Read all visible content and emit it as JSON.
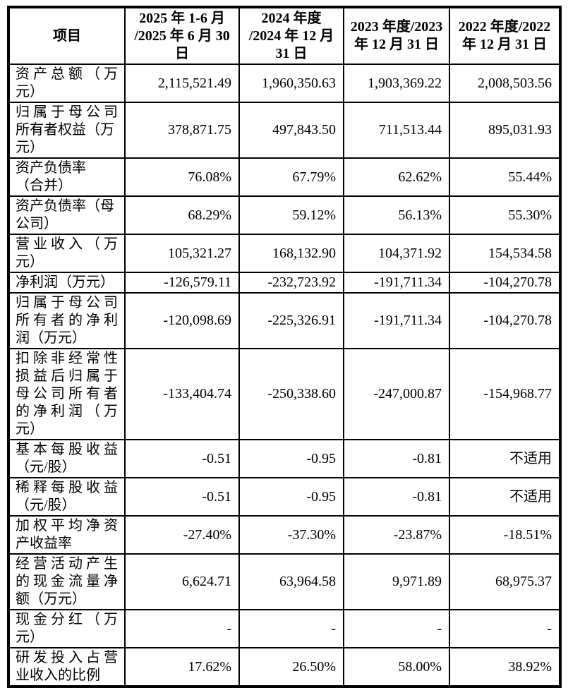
{
  "colors": {
    "background": "#ffffff",
    "text": "#000000",
    "border": "#000000"
  },
  "table": {
    "header": {
      "item_label": "项目",
      "periods": [
        "2025 年 1-6 月\n/2025 年 6 月 30\n日",
        "2024 年度\n/2024 年 12 月\n31 日",
        "2023 年度/2023\n年 12 月 31 日",
        "2022 年度/2022\n年 12 月 31 日"
      ]
    },
    "rows": [
      {
        "label": "资产总额（万元）",
        "label_lines": [
          {
            "text": "资产总额（万",
            "stretch": true
          },
          {
            "text": "元）",
            "stretch": false
          }
        ],
        "values": [
          "2,115,521.49",
          "1,960,350.63",
          "1,903,369.22",
          "2,008,503.56"
        ]
      },
      {
        "label": "归属于母公司所有者权益（万元）",
        "label_lines": [
          {
            "text": "归属于母公司",
            "stretch": true
          },
          {
            "text": "所有者权益（万",
            "stretch": false
          },
          {
            "text": "元）",
            "stretch": false
          }
        ],
        "values": [
          "378,871.75",
          "497,843.50",
          "711,513.44",
          "895,031.93"
        ]
      },
      {
        "label": "资产负债率（合并）",
        "label_lines": [
          {
            "text": "资产负债率",
            "stretch": false
          },
          {
            "text": "（合并）",
            "stretch": false
          }
        ],
        "values": [
          "76.08%",
          "67.79%",
          "62.62%",
          "55.44%"
        ]
      },
      {
        "label": "资产负债率（母公司）",
        "label_lines": [
          {
            "text": "资产负债率（母",
            "stretch": false
          },
          {
            "text": "公司）",
            "stretch": false
          }
        ],
        "values": [
          "68.29%",
          "59.12%",
          "56.13%",
          "55.30%"
        ]
      },
      {
        "label": "营业收入（万元）",
        "label_lines": [
          {
            "text": "营业收入（万",
            "stretch": true
          },
          {
            "text": "元）",
            "stretch": false
          }
        ],
        "values": [
          "105,321.27",
          "168,132.90",
          "104,371.92",
          "154,534.58"
        ]
      },
      {
        "label": "净利润（万元）",
        "label_lines": [
          {
            "text": "净利润（万元）",
            "stretch": false
          }
        ],
        "values": [
          "-126,579.11",
          "-232,723.92",
          "-191,711.34",
          "-104,270.78"
        ]
      },
      {
        "label": "归属于母公司所有者的净利润（万元）",
        "label_lines": [
          {
            "text": "归属于母公司",
            "stretch": true
          },
          {
            "text": "所有者的净利",
            "stretch": true
          },
          {
            "text": "润（万元）",
            "stretch": false
          }
        ],
        "values": [
          "-120,098.69",
          "-225,326.91",
          "-191,711.34",
          "-104,270.78"
        ]
      },
      {
        "label": "扣除非经常性损益后归属于母公司所有者的净利润（万元）",
        "label_lines": [
          {
            "text": "扣除非经常性",
            "stretch": true
          },
          {
            "text": "损益后归属于",
            "stretch": true
          },
          {
            "text": "母公司所有者",
            "stretch": true
          },
          {
            "text": "的净利润（万",
            "stretch": true
          },
          {
            "text": "元）",
            "stretch": false
          }
        ],
        "values": [
          "-133,404.74",
          "-250,338.60",
          "-247,000.87",
          "-154,968.77"
        ]
      },
      {
        "label": "基本每股收益（元/股）",
        "label_lines": [
          {
            "text": "基本每股收益",
            "stretch": true
          },
          {
            "text": "（元/股）",
            "stretch": false
          }
        ],
        "values": [
          "-0.51",
          "-0.95",
          "-0.81",
          "不适用"
        ]
      },
      {
        "label": "稀释每股收益（元/股）",
        "label_lines": [
          {
            "text": "稀释每股收益",
            "stretch": true
          },
          {
            "text": "（元/股）",
            "stretch": false
          }
        ],
        "values": [
          "-0.51",
          "-0.95",
          "-0.81",
          "不适用"
        ]
      },
      {
        "label": "加权平均净资产收益率",
        "label_lines": [
          {
            "text": "加权平均净资",
            "stretch": true
          },
          {
            "text": "产收益率",
            "stretch": false
          }
        ],
        "values": [
          "-27.40%",
          "-37.30%",
          "-23.87%",
          "-18.51%"
        ]
      },
      {
        "label": "经营活动产生的现金流量净额（万元）",
        "label_lines": [
          {
            "text": "经营活动产生",
            "stretch": true
          },
          {
            "text": "的现金流量净",
            "stretch": true
          },
          {
            "text": "额（万元）",
            "stretch": false
          }
        ],
        "values": [
          "6,624.71",
          "63,964.58",
          "9,971.89",
          "68,975.37"
        ]
      },
      {
        "label": "现金分红（万元）",
        "label_lines": [
          {
            "text": "现金分红（万",
            "stretch": true
          },
          {
            "text": "元）",
            "stretch": false
          }
        ],
        "values": [
          "-",
          "-",
          "-",
          "-"
        ]
      },
      {
        "label": "研发投入占营业收入的比例",
        "label_lines": [
          {
            "text": "研发投入占营",
            "stretch": true
          },
          {
            "text": "业收入的比例",
            "stretch": false
          }
        ],
        "values": [
          "17.62%",
          "26.50%",
          "58.00%",
          "38.92%"
        ]
      }
    ]
  }
}
